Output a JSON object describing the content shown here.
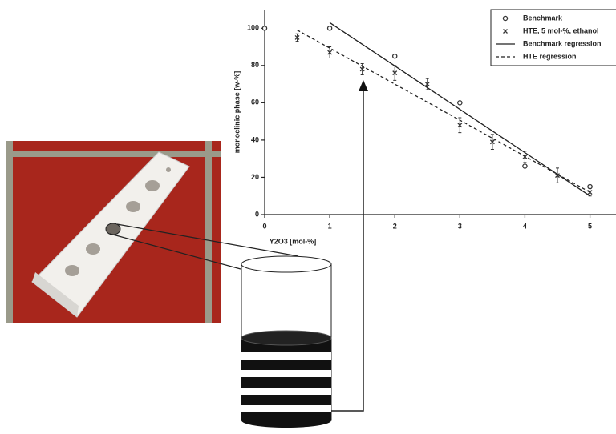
{
  "chart_data": {
    "type": "scatter",
    "x_label": "Y2O3 [mol-%]",
    "y_label": "monoclinic phase [w-%]",
    "xlim": [
      0,
      5.4
    ],
    "ylim": [
      0,
      110
    ],
    "xticks": [
      0,
      1,
      2,
      3,
      4,
      5
    ],
    "yticks": [
      0,
      20,
      40,
      60,
      80,
      100
    ],
    "legend": "top-right",
    "series": [
      {
        "name": "Benchmark",
        "type": "scatter",
        "marker": "circle",
        "color": "#333333",
        "x": [
          0,
          1,
          2,
          3,
          4,
          5
        ],
        "values": [
          100,
          100,
          85,
          60,
          26,
          15
        ]
      },
      {
        "name": "HTE, 5 mol-%, ethanol",
        "type": "scatter",
        "marker": "cross",
        "color": "#333333",
        "x": [
          0.5,
          1,
          1.5,
          2,
          2.5,
          3,
          3.5,
          4,
          4.5,
          5
        ],
        "values": [
          95,
          87,
          78,
          76,
          70,
          48,
          39,
          31,
          21,
          12
        ],
        "errors": [
          2,
          3,
          3,
          4,
          3,
          4,
          4,
          3,
          4,
          2
        ]
      },
      {
        "name": "Benchmark regression",
        "type": "line",
        "dash": "solid",
        "color": "#222222",
        "x": [
          1,
          5
        ],
        "values": [
          103,
          10
        ]
      },
      {
        "name": "HTE regression",
        "type": "line",
        "dash": "dashed",
        "color": "#222222",
        "x": [
          0.5,
          5
        ],
        "values": [
          99,
          12
        ]
      }
    ]
  }
}
